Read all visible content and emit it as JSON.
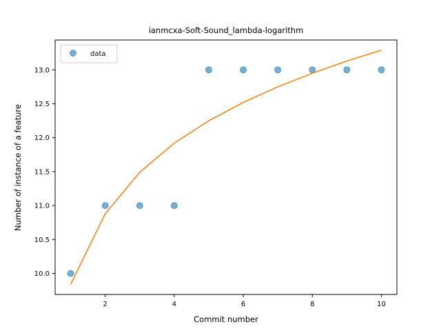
{
  "chart_data": {
    "type": "scatter",
    "title": "ianmcxa-Soft-Sound_lambda-logarithm",
    "xlabel": "Commit number",
    "ylabel": "Number of instance of a feature",
    "xlim": [
      0.55,
      10.45
    ],
    "ylim": [
      9.69,
      13.44
    ],
    "xticks": [
      2,
      4,
      6,
      8,
      10
    ],
    "yticks": [
      10.0,
      10.5,
      11.0,
      11.5,
      12.0,
      12.5,
      13.0
    ],
    "grid": false,
    "legend_position": "top-left",
    "series": [
      {
        "name": "data",
        "kind": "scatter",
        "color": "#1f77b4",
        "x": [
          1,
          2,
          3,
          4,
          5,
          6,
          7,
          8,
          9,
          10
        ],
        "y": [
          10,
          11,
          11,
          11,
          13,
          13,
          13,
          13,
          13,
          13
        ]
      },
      {
        "kind": "line",
        "color": "#ff7f0e",
        "x": [
          1,
          2,
          3,
          4,
          5,
          6,
          7,
          8,
          9,
          10
        ],
        "y": [
          9.84,
          10.88,
          11.49,
          11.92,
          12.25,
          12.52,
          12.75,
          12.95,
          13.13,
          13.29
        ]
      }
    ]
  }
}
